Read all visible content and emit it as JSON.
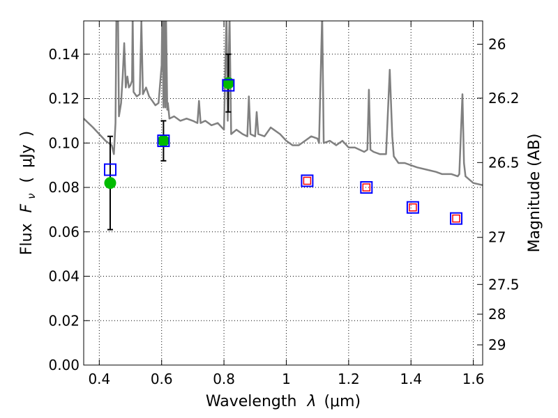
{
  "chart_data": {
    "type": "scatter",
    "xlabel": "Wavelength",
    "xlabel_symbol": "λ",
    "xlabel_unit": "(μm)",
    "ylabel": "Flux",
    "ylabel_symbol": "F",
    "ylabel_sub": "ν",
    "ylabel_unit_open": "(",
    "ylabel_unit": "μJy",
    "ylabel_unit_close": ")",
    "y2label": "Magnitude (AB)",
    "xlim": [
      0.35,
      1.63
    ],
    "ylim": [
      0.0,
      0.155
    ],
    "grid": true,
    "x_ticks": [
      0.4,
      0.6,
      0.8,
      1.0,
      1.2,
      1.4,
      1.6
    ],
    "x_tick_labels": [
      "0.4",
      "0.6",
      "0.8",
      "1",
      "1.2",
      "1.4",
      "1.6"
    ],
    "y_ticks": [
      0.0,
      0.02,
      0.04,
      0.06,
      0.08,
      0.1,
      0.12,
      0.14
    ],
    "y_tick_labels": [
      "0.00",
      "0.02",
      "0.04",
      "0.06",
      "0.08",
      "0.10",
      "0.12",
      "0.14"
    ],
    "y2_ticks": [
      {
        "label": "26",
        "flux": 0.1445
      },
      {
        "label": "26.2",
        "flux": 0.1202
      },
      {
        "label": "26.5",
        "flux": 0.0912
      },
      {
        "label": "27",
        "flux": 0.0575
      },
      {
        "label": "27.5",
        "flux": 0.0363
      },
      {
        "label": "28",
        "flux": 0.0229
      },
      {
        "label": "29",
        "flux": 0.0091
      }
    ],
    "series": [
      {
        "kind": "line",
        "color": "#808080",
        "points": [
          [
            0.35,
            0.111
          ],
          [
            0.38,
            0.107
          ],
          [
            0.4,
            0.104
          ],
          [
            0.42,
            0.101
          ],
          [
            0.44,
            0.099
          ],
          [
            0.447,
            0.095
          ],
          [
            0.452,
            0.109
          ],
          [
            0.455,
            0.158
          ],
          [
            0.46,
            0.158
          ],
          [
            0.463,
            0.112
          ],
          [
            0.47,
            0.118
          ],
          [
            0.475,
            0.13
          ],
          [
            0.48,
            0.145
          ],
          [
            0.485,
            0.125
          ],
          [
            0.49,
            0.13
          ],
          [
            0.495,
            0.125
          ],
          [
            0.5,
            0.126
          ],
          [
            0.505,
            0.128
          ],
          [
            0.507,
            0.158
          ],
          [
            0.51,
            0.123
          ],
          [
            0.52,
            0.121
          ],
          [
            0.53,
            0.122
          ],
          [
            0.535,
            0.155
          ],
          [
            0.54,
            0.122
          ],
          [
            0.55,
            0.125
          ],
          [
            0.56,
            0.121
          ],
          [
            0.57,
            0.119
          ],
          [
            0.58,
            0.117
          ],
          [
            0.59,
            0.118
          ],
          [
            0.6,
            0.135
          ],
          [
            0.602,
            0.158
          ],
          [
            0.606,
            0.116
          ],
          [
            0.608,
            0.158
          ],
          [
            0.612,
            0.116
          ],
          [
            0.614,
            0.158
          ],
          [
            0.618,
            0.115
          ],
          [
            0.62,
            0.118
          ],
          [
            0.625,
            0.111
          ],
          [
            0.64,
            0.112
          ],
          [
            0.66,
            0.11
          ],
          [
            0.68,
            0.111
          ],
          [
            0.7,
            0.11
          ],
          [
            0.715,
            0.109
          ],
          [
            0.72,
            0.119
          ],
          [
            0.725,
            0.109
          ],
          [
            0.74,
            0.11
          ],
          [
            0.76,
            0.108
          ],
          [
            0.78,
            0.109
          ],
          [
            0.8,
            0.106
          ],
          [
            0.808,
            0.158
          ],
          [
            0.812,
            0.11
          ],
          [
            0.818,
            0.158
          ],
          [
            0.823,
            0.104
          ],
          [
            0.84,
            0.106
          ],
          [
            0.86,
            0.104
          ],
          [
            0.875,
            0.103
          ],
          [
            0.88,
            0.121
          ],
          [
            0.885,
            0.104
          ],
          [
            0.9,
            0.103
          ],
          [
            0.905,
            0.114
          ],
          [
            0.91,
            0.104
          ],
          [
            0.93,
            0.103
          ],
          [
            0.95,
            0.107
          ],
          [
            0.96,
            0.106
          ],
          [
            0.98,
            0.104
          ],
          [
            1.0,
            0.101
          ],
          [
            1.02,
            0.099
          ],
          [
            1.04,
            0.099
          ],
          [
            1.06,
            0.101
          ],
          [
            1.08,
            0.103
          ],
          [
            1.1,
            0.102
          ],
          [
            1.105,
            0.1
          ],
          [
            1.115,
            0.158
          ],
          [
            1.12,
            0.1
          ],
          [
            1.14,
            0.101
          ],
          [
            1.16,
            0.099
          ],
          [
            1.18,
            0.101
          ],
          [
            1.2,
            0.098
          ],
          [
            1.22,
            0.098
          ],
          [
            1.25,
            0.096
          ],
          [
            1.26,
            0.097
          ],
          [
            1.265,
            0.124
          ],
          [
            1.27,
            0.097
          ],
          [
            1.28,
            0.096
          ],
          [
            1.3,
            0.095
          ],
          [
            1.32,
            0.095
          ],
          [
            1.332,
            0.133
          ],
          [
            1.34,
            0.103
          ],
          [
            1.345,
            0.094
          ],
          [
            1.36,
            0.091
          ],
          [
            1.38,
            0.091
          ],
          [
            1.4,
            0.09
          ],
          [
            1.42,
            0.089
          ],
          [
            1.45,
            0.088
          ],
          [
            1.48,
            0.087
          ],
          [
            1.5,
            0.086
          ],
          [
            1.53,
            0.086
          ],
          [
            1.55,
            0.085
          ],
          [
            1.555,
            0.086
          ],
          [
            1.565,
            0.122
          ],
          [
            1.57,
            0.091
          ],
          [
            1.575,
            0.085
          ],
          [
            1.6,
            0.082
          ],
          [
            1.63,
            0.081
          ]
        ]
      },
      {
        "kind": "points",
        "marker": "circle",
        "color": "#00bb00",
        "points": [
          {
            "x": 0.435,
            "y": 0.082,
            "err_lo": 0.061,
            "err_hi": 0.103
          },
          {
            "x": 0.606,
            "y": 0.101,
            "err_lo": 0.092,
            "err_hi": 0.11
          },
          {
            "x": 0.814,
            "y": 0.127,
            "err_lo": 0.114,
            "err_hi": 0.14
          }
        ]
      },
      {
        "kind": "points",
        "marker": "square",
        "color": "#0000ff",
        "points": [
          {
            "x": 0.435,
            "y": 0.088
          },
          {
            "x": 0.606,
            "y": 0.101
          },
          {
            "x": 0.814,
            "y": 0.126
          },
          {
            "x": 1.067,
            "y": 0.083
          },
          {
            "x": 1.257,
            "y": 0.08
          },
          {
            "x": 1.406,
            "y": 0.071
          },
          {
            "x": 1.545,
            "y": 0.066
          }
        ]
      },
      {
        "kind": "points",
        "marker": "small-square",
        "color": "#ff0000",
        "points": [
          {
            "x": 1.067,
            "y": 0.083
          },
          {
            "x": 1.257,
            "y": 0.08
          },
          {
            "x": 1.406,
            "y": 0.071
          },
          {
            "x": 1.545,
            "y": 0.066
          }
        ]
      }
    ]
  }
}
